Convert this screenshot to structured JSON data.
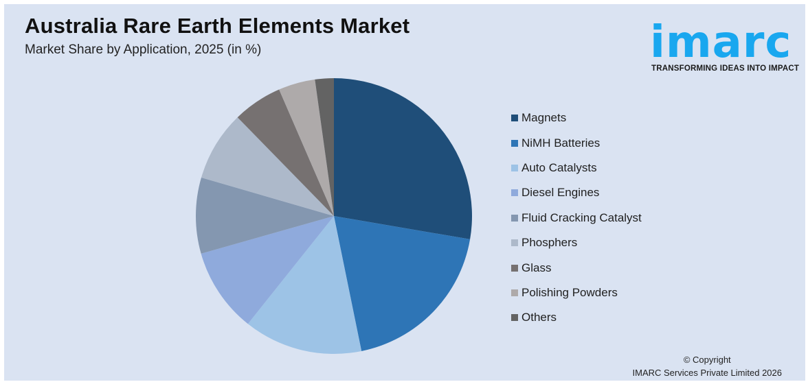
{
  "header": {
    "title": "Australia Rare Earth Elements Market",
    "subtitle": "Market Share by Application, 2025 (in %)"
  },
  "logo": {
    "word": "imarc",
    "tagline": "TRANSFORMING IDEAS INTO IMPACT",
    "color": "#19a7ef"
  },
  "footer": {
    "line1": "© Copyright",
    "line2": "IMARC Services Private Limited 2026"
  },
  "chart_data": {
    "type": "pie",
    "title": "Australia Rare Earth Elements Market",
    "subtitle": "Market Share by Application, 2025 (in %)",
    "categories": [
      "Magnets",
      "NiMH Batteries",
      "Auto Catalysts",
      "Diesel Engines",
      "Fluid Cracking Catalyst",
      "Phosphers",
      "Glass",
      "Polishing Powders",
      "Others"
    ],
    "values": [
      27.7,
      19.1,
      13.9,
      9.9,
      8.9,
      8.2,
      5.8,
      4.3,
      2.2
    ],
    "colors": [
      "#1f4e79",
      "#2e75b6",
      "#9dc3e6",
      "#8faadc",
      "#8497b0",
      "#adb9ca",
      "#767171",
      "#aeaaaa",
      "#636363"
    ],
    "start_angle": "12 o'clock, clockwise",
    "legend_position": "right",
    "data_labels": false
  }
}
